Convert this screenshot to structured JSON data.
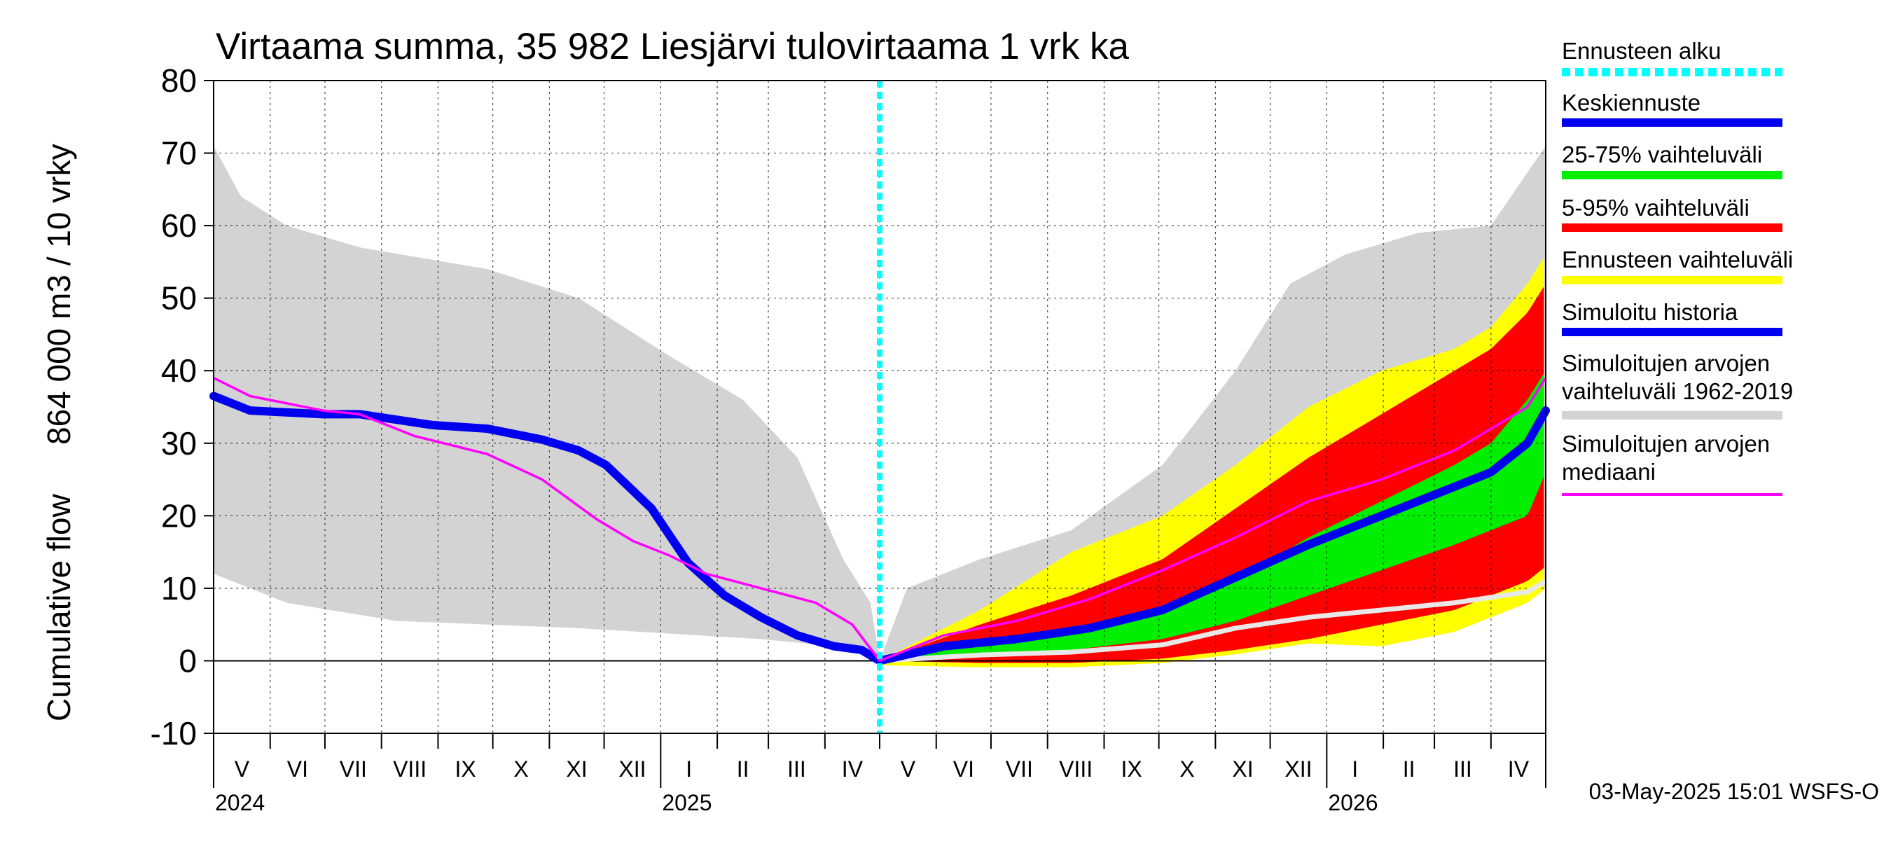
{
  "chart_data": {
    "type": "area",
    "title": "Virtaama summa, 35 982 Liesjärvi tulovirtaama 1 vrk ka",
    "ylabel_top": "864 000 m3 / 10 vrky",
    "ylabel_bottom": "Cumulative flow",
    "ylim": [
      -10,
      80
    ],
    "yticks": [
      "-10",
      "0",
      "10",
      "20",
      "30",
      "40",
      "50",
      "60",
      "70",
      "80"
    ],
    "xrange_days": [
      0,
      730
    ],
    "forecast_start_day": 365,
    "months": [
      {
        "label": "V",
        "start": 0
      },
      {
        "label": "VI",
        "start": 31
      },
      {
        "label": "VII",
        "start": 61
      },
      {
        "label": "VIII",
        "start": 92
      },
      {
        "label": "IX",
        "start": 123
      },
      {
        "label": "X",
        "start": 153
      },
      {
        "label": "XI",
        "start": 184
      },
      {
        "label": "XII",
        "start": 214
      },
      {
        "label": "I",
        "start": 245
      },
      {
        "label": "II",
        "start": 276
      },
      {
        "label": "III",
        "start": 304
      },
      {
        "label": "IV",
        "start": 335
      },
      {
        "label": "V",
        "start": 365
      },
      {
        "label": "VI",
        "start": 396
      },
      {
        "label": "VII",
        "start": 426
      },
      {
        "label": "VIII",
        "start": 457
      },
      {
        "label": "IX",
        "start": 488
      },
      {
        "label": "X",
        "start": 518
      },
      {
        "label": "XI",
        "start": 549
      },
      {
        "label": "XII",
        "start": 579
      },
      {
        "label": "I",
        "start": 610
      },
      {
        "label": "II",
        "start": 641
      },
      {
        "label": "III",
        "start": 669
      },
      {
        "label": "IV",
        "start": 700
      }
    ],
    "years": [
      {
        "label": "2024",
        "day": 0
      },
      {
        "label": "2025",
        "day": 245
      },
      {
        "label": "2026",
        "day": 610
      }
    ],
    "series": [
      {
        "name": "Simuloitujen arvojen vaihteluväli 1962-2019 (upper)",
        "color": "#d3d3d3",
        "x": [
          0,
          15,
          40,
          80,
          150,
          200,
          250,
          290,
          320,
          345,
          360,
          365,
          380,
          420,
          470,
          520,
          560,
          590,
          620,
          660,
          700,
          730
        ],
        "y": [
          71,
          64,
          60,
          57,
          54,
          50,
          42,
          36,
          28,
          14,
          8,
          0,
          10,
          14,
          18,
          27,
          40,
          52,
          56,
          59,
          60,
          71
        ]
      },
      {
        "name": "Simuloitujen arvojen vaihteluväli 1962-2019 (lower)",
        "color": "#d3d3d3",
        "x": [
          0,
          40,
          100,
          200,
          300,
          360,
          365,
          400,
          480,
          560,
          620,
          680,
          720,
          730
        ],
        "y": [
          12,
          8,
          5.5,
          4.5,
          3,
          1.5,
          0,
          0.3,
          0.5,
          2.5,
          5.5,
          7,
          9,
          10
        ]
      },
      {
        "name": "Ennusteen vaihteluväli (upper)",
        "color": "#ffff00",
        "x": [
          365,
          420,
          470,
          520,
          560,
          600,
          640,
          680,
          700,
          720,
          730
        ],
        "y": [
          0,
          7,
          15,
          20,
          27,
          35,
          40,
          43,
          46,
          52,
          56
        ]
      },
      {
        "name": "5-95% vaihteluväli (upper)",
        "color": "#ff0000",
        "x": [
          365,
          420,
          470,
          520,
          560,
          600,
          640,
          680,
          700,
          720,
          730
        ],
        "y": [
          0,
          5,
          9,
          14,
          21,
          28,
          34,
          40,
          43,
          48,
          52
        ]
      },
      {
        "name": "5-95% vaihteluväli (lower)",
        "color": "#ff0000",
        "x": [
          365,
          420,
          470,
          520,
          560,
          600,
          640,
          680,
          720,
          730
        ],
        "y": [
          0,
          -0.3,
          -0.3,
          0.3,
          1.5,
          3,
          5,
          7,
          11,
          13
        ]
      },
      {
        "name": "25-75% vaihteluväli (upper)",
        "color": "#00ee00",
        "x": [
          365,
          420,
          470,
          520,
          560,
          600,
          640,
          680,
          700,
          720,
          730
        ],
        "y": [
          0,
          2.5,
          4,
          7,
          11,
          17,
          22,
          27,
          30,
          36,
          40
        ]
      },
      {
        "name": "25-75% vaihteluväli (lower)",
        "color": "#00ee00",
        "x": [
          365,
          420,
          470,
          520,
          560,
          600,
          640,
          680,
          700,
          720,
          730
        ],
        "y": [
          0,
          1,
          1.5,
          3,
          5.5,
          9,
          12.5,
          16,
          18,
          20,
          26
        ]
      },
      {
        "name": "Keskiennuste",
        "color": "#0000ee",
        "x": [
          365,
          400,
          440,
          480,
          520,
          560,
          600,
          640,
          680,
          700,
          720,
          730
        ],
        "y": [
          0,
          2,
          3,
          4.5,
          7,
          11.5,
          16,
          20,
          24,
          26,
          30,
          34.5
        ]
      },
      {
        "name": "Simuloitu historia",
        "color": "#0000ee",
        "x": [
          0,
          20,
          60,
          80,
          120,
          150,
          180,
          200,
          215,
          240,
          260,
          280,
          300,
          320,
          340,
          355,
          365
        ],
        "y": [
          36.5,
          34.5,
          34,
          34,
          32.5,
          32,
          30.5,
          29,
          27,
          21,
          13.5,
          9,
          6,
          3.5,
          2,
          1.5,
          0
        ]
      },
      {
        "name": "Simuloitujen arvojen mediaani",
        "color": "#ff00ff",
        "x": [
          0,
          20,
          60,
          80,
          110,
          150,
          180,
          210,
          230,
          250,
          270,
          300,
          330,
          350,
          365,
          400,
          440,
          480,
          520,
          560,
          600,
          640,
          680,
          700,
          720,
          730
        ],
        "y": [
          39,
          36.5,
          34.5,
          34,
          31,
          28.5,
          25,
          19.5,
          16.5,
          14.5,
          12,
          10,
          8,
          5,
          0,
          3.5,
          5.5,
          8.5,
          12.5,
          17,
          22,
          25,
          29,
          32,
          35,
          39
        ]
      },
      {
        "name": "Median (white forecast)",
        "color": "#e8e8e8",
        "x": [
          365,
          420,
          470,
          520,
          560,
          600,
          640,
          680,
          720,
          730
        ],
        "y": [
          0,
          0.8,
          1.2,
          2.2,
          4.5,
          6,
          7,
          8,
          9.5,
          11
        ]
      }
    ]
  },
  "legend": [
    {
      "label": "Ennusteen alku",
      "color": "#00ffff",
      "style": "dotted"
    },
    {
      "label": "Keskiennuste",
      "color": "#0000ee",
      "style": "solid"
    },
    {
      "label": "25-75% vaihteluväli",
      "color": "#00ee00",
      "style": "solid"
    },
    {
      "label": "5-95% vaihteluväli",
      "color": "#ff0000",
      "style": "solid"
    },
    {
      "label": "Ennusteen vaihteluväli",
      "color": "#ffff00",
      "style": "solid"
    },
    {
      "label": "Simuloitu historia",
      "color": "#0000ee",
      "style": "solid"
    },
    {
      "label": "Simuloitujen arvojen",
      "label2": "vaihteluväli 1962-2019",
      "color": "#d3d3d3",
      "style": "solid"
    },
    {
      "label": "Simuloitujen arvojen",
      "label2": "mediaani",
      "color": "#ff00ff",
      "style": "thin"
    }
  ],
  "footer": "03-May-2025 15:01 WSFS-O"
}
